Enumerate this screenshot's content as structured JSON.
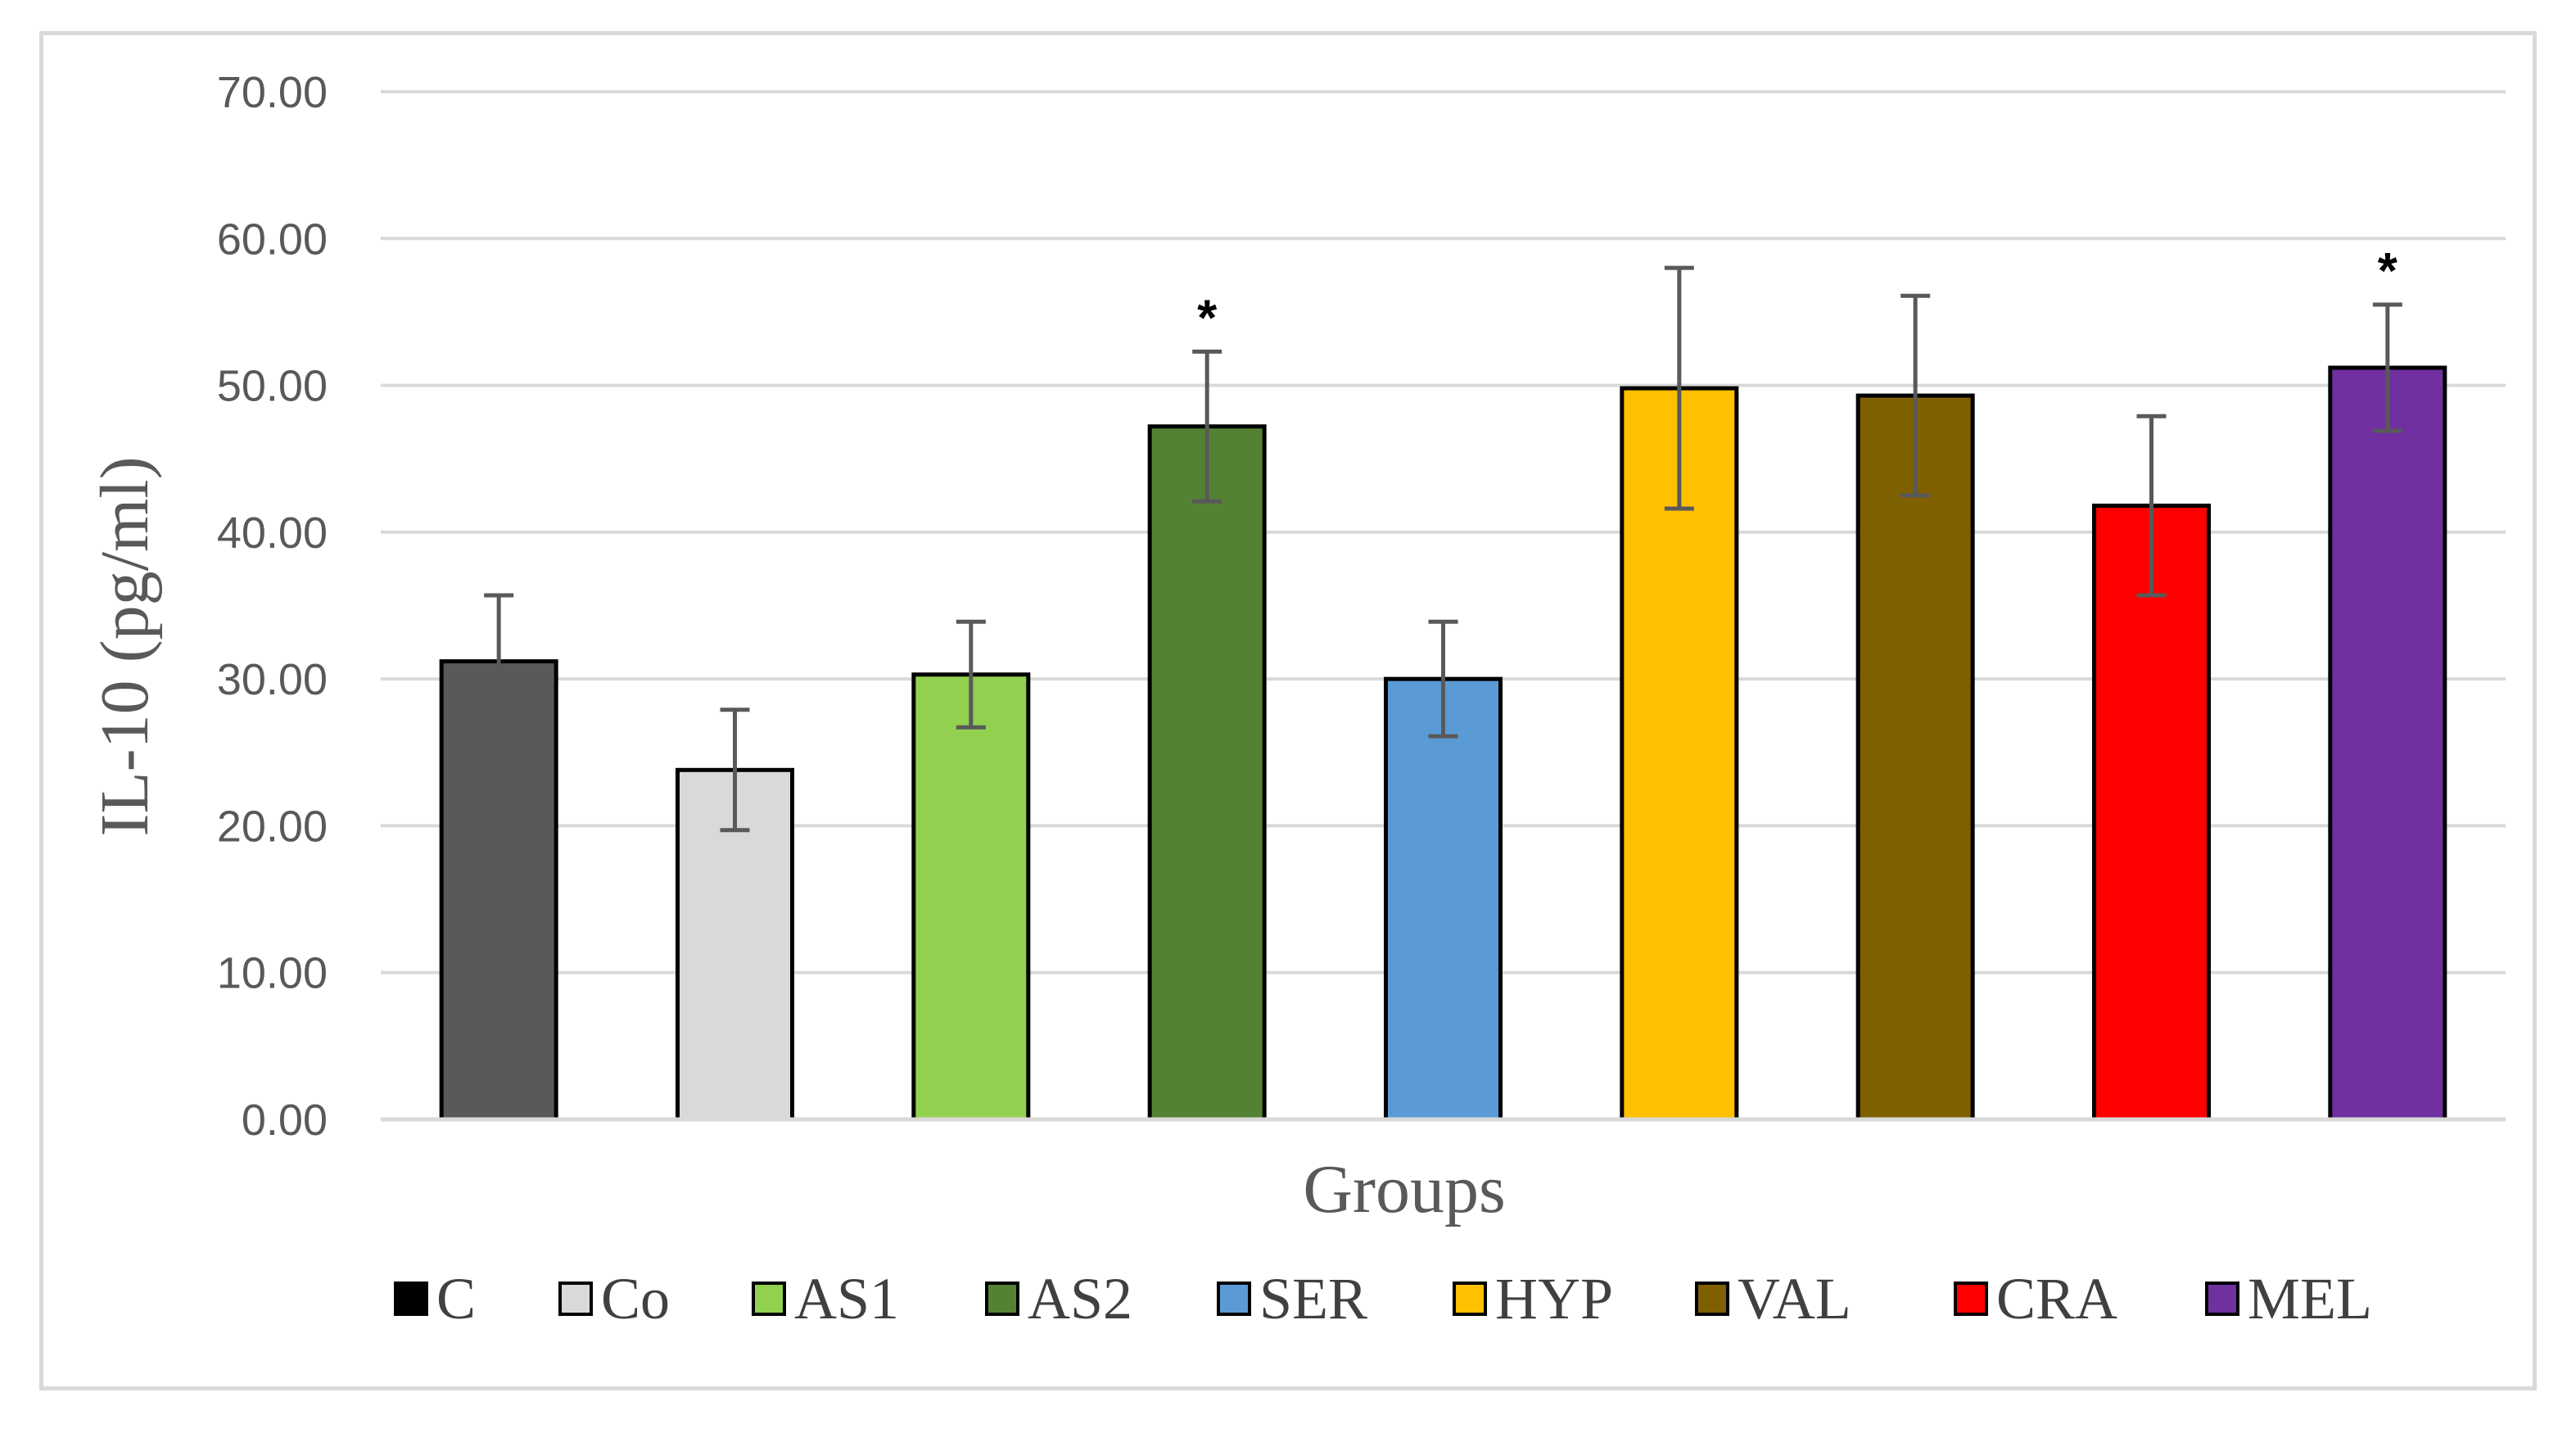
{
  "chart_data": {
    "type": "bar",
    "title": "",
    "xlabel": "Groups",
    "ylabel": "IL-10 (pg/ml)",
    "ylim": [
      0,
      70
    ],
    "y_ticks": [
      "0.00",
      "10.00",
      "20.00",
      "30.00",
      "40.00",
      "50.00",
      "60.00",
      "70.00"
    ],
    "grid": true,
    "legend_position": "bottom",
    "categories": [
      "C",
      "Co",
      "AS1",
      "AS2",
      "SER",
      "HYP",
      "VAL",
      "CRA",
      "MEL"
    ],
    "values": [
      31.2,
      23.8,
      30.3,
      47.2,
      30.0,
      49.8,
      49.3,
      41.8,
      51.2
    ],
    "errors": [
      4.5,
      4.1,
      3.6,
      5.1,
      3.9,
      8.2,
      6.8,
      6.1,
      4.3
    ],
    "colors": [
      "#595959",
      "#d9d9d9",
      "#92d050",
      "#548235",
      "#5b9bd5",
      "#ffc000",
      "#7f6000",
      "#ff0000",
      "#7030a0"
    ],
    "significance": [
      "",
      "",
      "",
      "*",
      "",
      "",
      "",
      "",
      "*"
    ]
  }
}
